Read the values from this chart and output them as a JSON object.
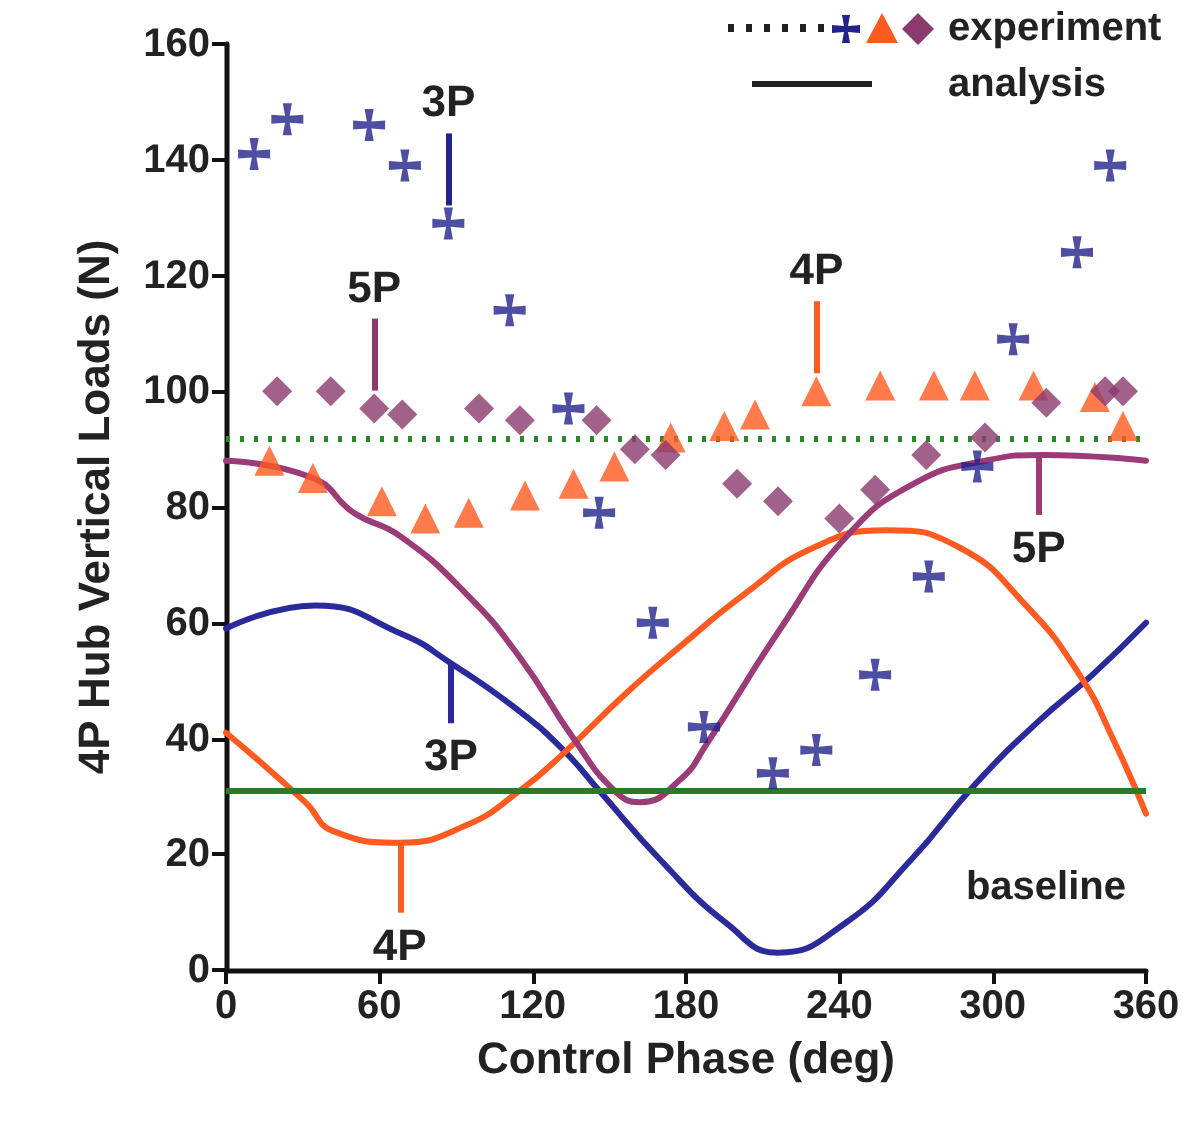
{
  "chart_data": {
    "type": "scatter",
    "xlabel": "Control Phase (deg)",
    "ylabel": "4P Hub Vertical Loads (N)",
    "xlim": [
      0,
      360
    ],
    "xticks": [
      0,
      60,
      120,
      180,
      240,
      300,
      360
    ],
    "ylim": [
      0,
      160
    ],
    "yticks": [
      0,
      20,
      40,
      60,
      80,
      100,
      120,
      140,
      160
    ],
    "grid": false,
    "series": [
      {
        "marker": "cross",
        "color": "#22228c",
        "x": [
          11,
          24,
          56,
          70,
          87,
          111,
          134,
          146,
          167,
          187,
          214,
          231,
          254,
          275,
          294,
          308,
          333,
          346
        ],
        "values": [
          141,
          147,
          146,
          139,
          129,
          114,
          97,
          79,
          60,
          42,
          34,
          38,
          51,
          68,
          87,
          109,
          124,
          139
        ]
      },
      {
        "marker": "triangle",
        "color": "#ff5a1f",
        "x": [
          17,
          34,
          61,
          78,
          95,
          117,
          136,
          152,
          174,
          195,
          207,
          231,
          256,
          277,
          293,
          316,
          340,
          351
        ],
        "values": [
          88,
          85,
          81,
          78,
          79,
          82,
          84,
          87,
          92,
          94,
          96,
          100,
          101,
          101,
          101,
          101,
          99,
          94
        ]
      },
      {
        "marker": "diamond",
        "color": "#8b3a6e",
        "x": [
          20,
          41,
          58,
          69,
          99,
          115,
          145,
          160,
          172,
          200,
          216,
          240,
          254,
          274,
          297,
          321,
          344,
          351
        ],
        "values": [
          100,
          100,
          97,
          96,
          97,
          95,
          95,
          90,
          89,
          84,
          81,
          78,
          83,
          89,
          92,
          98,
          100,
          100
        ]
      },
      {
        "type": "line",
        "marker": "none",
        "line_style": "solid",
        "color": "#2a2a9a",
        "x": [
          0,
          35,
          69,
          88,
          114,
          132,
          146,
          170,
          196,
          216,
          242,
          268,
          293,
          318,
          339,
          360
        ],
        "values": [
          59,
          63,
          58,
          53,
          45,
          38,
          31,
          19,
          8,
          3,
          8,
          19,
          32,
          43,
          51,
          60
        ]
      },
      {
        "type": "line",
        "marker": "none",
        "line_style": "solid",
        "color": "#ff5a1f",
        "x": [
          0,
          31,
          42,
          68,
          94,
          115,
          131,
          157,
          178,
          203,
          230,
          258,
          287,
          313,
          334,
          347,
          360
        ],
        "values": [
          41,
          29,
          24,
          22,
          25,
          31,
          37,
          48,
          56,
          65,
          73,
          76,
          73,
          63,
          51,
          40,
          27
        ]
      },
      {
        "type": "line",
        "marker": "none",
        "line_style": "solid",
        "color": "#9b3c78",
        "x": [
          0,
          34,
          50,
          68,
          94,
          115,
          136,
          152,
          162,
          178,
          188,
          217,
          243,
          269,
          297,
          320,
          360
        ],
        "values": [
          88,
          85,
          79,
          75,
          65,
          54,
          40,
          31,
          29,
          33,
          39,
          59,
          75,
          84,
          88,
          89,
          88
        ]
      }
    ],
    "ref_lines": [
      {
        "axis": "y",
        "value": 92,
        "color": "#2a8a2a",
        "line_style": "dotted"
      },
      {
        "axis": "y",
        "value": 31,
        "color": "#2a7a2a",
        "line_style": "solid",
        "label": "baseline"
      }
    ],
    "annotations": [
      {
        "text": "3P",
        "x": 87,
        "y": 129
      },
      {
        "text": "5P",
        "x": 58,
        "y": 97
      },
      {
        "text": "4P",
        "x": 231,
        "y": 100
      },
      {
        "text": "3P",
        "x": 88,
        "y": 53
      },
      {
        "text": "4P",
        "x": 68,
        "y": 22
      },
      {
        "text": "5P",
        "x": 318,
        "y": 89
      },
      "experiment",
      "analysis"
    ]
  }
}
